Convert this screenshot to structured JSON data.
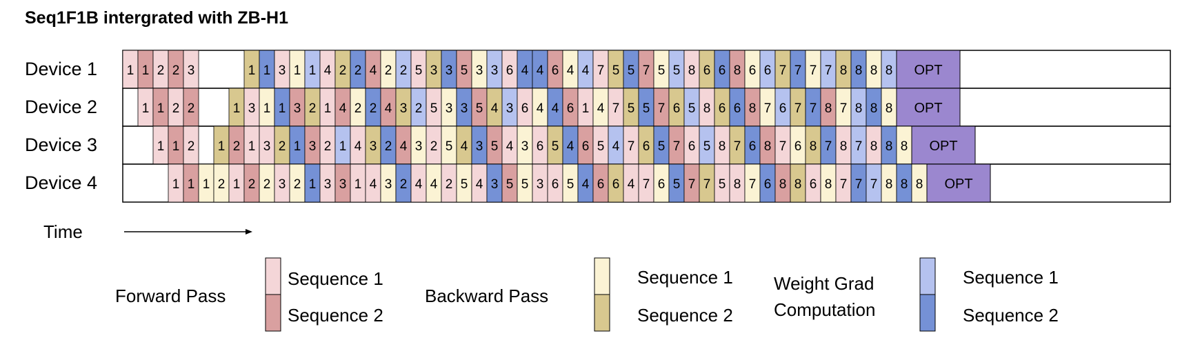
{
  "title": "Seq1F1B intergrated with ZB-H1",
  "time_label": "Time",
  "opt_label": "OPT",
  "colors": {
    "F1": "#f4d6d8",
    "F2": "#d9a0a0",
    "B1": "#fbf3d4",
    "B2": "#d8c88f",
    "W1": "#b5c2ef",
    "W2": "#7591d6",
    "OPT": "#9b87cf"
  },
  "devices": [
    {
      "label": "Device 1",
      "cells": "F1:1 F2:1 F1:2 F2:2 F1:3 _ _ _ B2:1 W2:1 F1:3 B1:1 W1:1 F1:4 B2:2 W2:2 F2:4 B1:2 W1:2 F1:5 B2:3 W2:3 F2:5 B1:3 W1:3 F1:6 W2:4 W2:4 F2:6 B1:4 W1:4 F1:7 B2:5 W2:5 F2:7 B1:5 W1:5 F1:8 B2:6 W2:6 F2:8 B1:6 W1:6 B2:7 W2:7 B1:7 W1:7 B2:8 W2:8 B1:8 W1:8"
    },
    {
      "label": "Device 2",
      "cells": "_ F1:1 F2:1 F1:2 F2:2 _ _ B2:1 F1:3 B1:1 W2:1 F2:3 B2:2 F1:1 F2:4 B1:2 W2:2 F2:4 B2:3 W1:2 F1:5 B1:3 W2:3 F2:5 B2:4 W1:3 F1:6 B1:4 W2:4 F2:6 F1:1 B1:4 F1:7 B2:5 W2:5 F2:7 B2:6 W1:5 F1:8 B2:6 W2:6 F2:8 B1:7 W1:6 B2:7 W2:7 F2:8 B1:7 W1:8 W2:8 B1:8"
    },
    {
      "label": "Device 3",
      "cells": "_ _ F1:1 F2:1 F1:2 _ B2:1 F2:2 F1:1 F1:3 B2:2 W2:1 F2:3 F1:2 W1:1 F1:4 B2:3 W2:2 F2:4 B1:3 F1:2 B1:5 B2:4 W2:3 F2:5 F1:4 B1:3 F1:6 B2:5 W2:4 F2:6 F1:5 W1:4 F1:7 B2:6 W2:5 F2:7 F1:6 W1:5 F1:8 B2:7 W2:6 F2:8 F1:7 B1:6 B2:8 W2:7 F1:8 W1:7 F1:8 W2:8 B1:8"
    },
    {
      "label": "Device 4",
      "cells": "_ _ _ F1:1 F2:1 B1:1 B1:2 F1:1 F2:2 B1:2 F1:3 B1:2 W2:1 F1:3 F2:3 F1:1 F1:4 B1:3 W2:2 F1:4 B1:4 F1:2 B1:5 F1:4 W2:3 F2:5 B1:5 F1:3 F1:6 B1:5 W2:4 F2:6 B2:6 F1:4 F1:7 B1:6 W2:5 F2:7 B2:7 F1:5 F1:8 B1:7 W2:6 F2:8 B2:8 F1:6 B1:8 F1:7 W2:7 W1:7 B1:8 W2:8 B1:8"
    }
  ],
  "legend": {
    "forward_pass": "Forward Pass",
    "backward_pass": "Backward Pass",
    "weight_grad_line1": "Weight Grad",
    "weight_grad_line2": "Computation",
    "sequence_1": "Sequence 1",
    "sequence_2": "Sequence 2"
  }
}
